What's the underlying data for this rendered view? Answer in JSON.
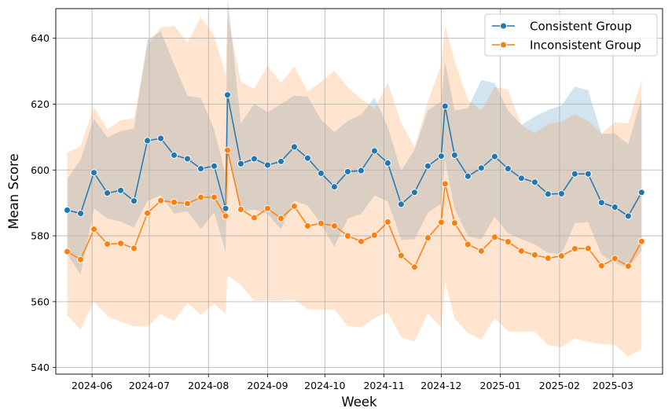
{
  "chart_data": {
    "type": "line",
    "title": "",
    "xlabel": "Week",
    "ylabel": "Mean Score",
    "grid": true,
    "legend_position": "top-right",
    "x_tick_labels": [
      "2024-06",
      "2024-07",
      "2024-08",
      "2024-09",
      "2024-10",
      "2024-11",
      "2024-12",
      "2025-01",
      "2025-02",
      "2025-03"
    ],
    "x_tick_dates": [
      "2024-06-01",
      "2024-07-01",
      "2024-08-01",
      "2024-09-01",
      "2024-10-01",
      "2024-11-01",
      "2024-12-01",
      "2025-01-01",
      "2025-02-01",
      "2025-03-01"
    ],
    "y_ticks": [
      540,
      560,
      580,
      600,
      620,
      640
    ],
    "ylim": [
      538,
      649
    ],
    "xlim": [
      "2024-05-13",
      "2025-03-27"
    ],
    "x": [
      "2024-05-19",
      "2024-05-26",
      "2024-06-02",
      "2024-06-09",
      "2024-06-16",
      "2024-06-23",
      "2024-06-30",
      "2024-07-07",
      "2024-07-14",
      "2024-07-21",
      "2024-07-28",
      "2024-08-04",
      "2024-08-10",
      "2024-08-11",
      "2024-08-18",
      "2024-08-25",
      "2024-09-01",
      "2024-09-08",
      "2024-09-15",
      "2024-09-22",
      "2024-09-29",
      "2024-10-06",
      "2024-10-13",
      "2024-10-20",
      "2024-10-27",
      "2024-11-03",
      "2024-11-10",
      "2024-11-17",
      "2024-11-24",
      "2024-12-01",
      "2024-12-03",
      "2024-12-08",
      "2024-12-15",
      "2024-12-22",
      "2024-12-29",
      "2025-01-05",
      "2025-01-12",
      "2025-01-19",
      "2025-01-26",
      "2025-02-02",
      "2025-02-09",
      "2025-02-16",
      "2025-02-23",
      "2025-03-02",
      "2025-03-09",
      "2025-03-16"
    ],
    "series": [
      {
        "name": "Consistent Group",
        "color": "#1f77b4",
        "values": [
          587.8,
          586.8,
          599.2,
          593.0,
          593.8,
          590.6,
          608.9,
          609.6,
          604.5,
          603.4,
          600.4,
          601.2,
          588.3,
          622.8,
          601.9,
          603.4,
          601.5,
          602.6,
          607.0,
          603.6,
          599.0,
          594.9,
          599.5,
          599.8,
          605.8,
          602.1,
          589.6,
          593.2,
          601.2,
          604.2,
          619.4,
          604.5,
          598.1,
          600.6,
          604.1,
          600.4,
          597.5,
          596.3,
          592.7,
          592.8,
          598.8,
          598.8,
          590.1,
          588.7,
          586.0,
          593.2
        ],
        "ci_lower": [
          574.5,
          568.2,
          588.3,
          585.3,
          584.3,
          582.5,
          590.6,
          592.3,
          586.8,
          587.4,
          582.1,
          587.0,
          575.0,
          605.0,
          587.1,
          588.0,
          586.6,
          582.0,
          590.6,
          589.2,
          583.5,
          576.7,
          585.2,
          586.6,
          592.3,
          590.4,
          578.8,
          579.0,
          587.0,
          589.8,
          603.0,
          588.2,
          579.9,
          578.9,
          585.8,
          580.8,
          579.0,
          577.4,
          574.8,
          574.4,
          583.8,
          584.2,
          574.3,
          571.8,
          570.2,
          575.5
        ],
        "ci_upper": [
          597.2,
          603.1,
          615.6,
          609.9,
          611.8,
          612.6,
          639.5,
          642.1,
          632.1,
          622.5,
          621.9,
          612.3,
          598.6,
          652.8,
          614.1,
          620.1,
          617.5,
          620.0,
          622.6,
          622.3,
          615.3,
          611.5,
          614.9,
          616.8,
          622.0,
          613.0,
          599.7,
          606.2,
          618.1,
          620.8,
          632.9,
          618.1,
          618.8,
          627.3,
          626.4,
          618.1,
          613.7,
          616.2,
          618.2,
          619.6,
          625.3,
          624.2,
          610.9,
          611.1,
          607.8,
          622.1
        ]
      },
      {
        "name": "Inconsistent Group",
        "color": "#ff7f0e",
        "values": [
          575.2,
          572.8,
          582.0,
          577.5,
          577.7,
          576.2,
          586.9,
          590.7,
          590.2,
          589.8,
          591.7,
          591.7,
          586.0,
          606.0,
          588.0,
          585.5,
          588.3,
          585.3,
          589.0,
          583.0,
          583.8,
          583.0,
          580.0,
          578.3,
          580.2,
          584.2,
          574.0,
          570.5,
          579.4,
          584.1,
          595.8,
          583.9,
          577.4,
          575.4,
          579.6,
          578.2,
          575.4,
          574.2,
          573.2,
          573.9,
          576.1,
          576.2,
          570.9,
          573.1,
          570.8,
          578.3
        ],
        "ci_lower": [
          555.8,
          551.5,
          560.0,
          555.6,
          553.8,
          552.5,
          552.4,
          556.2,
          554.1,
          559.6,
          556.0,
          559.4,
          556.2,
          568.0,
          565.0,
          560.3,
          560.4,
          560.3,
          560.6,
          557.7,
          557.6,
          557.6,
          552.6,
          552.1,
          555.0,
          556.7,
          549.2,
          547.9,
          556.5,
          552.0,
          566.1,
          554.9,
          550.4,
          548.5,
          554.9,
          551.0,
          550.8,
          550.9,
          546.8,
          546.2,
          548.8,
          547.8,
          547.1,
          546.9,
          543.3,
          545.6
        ],
        "ci_upper": [
          605.2,
          607.3,
          619.1,
          612.4,
          615.1,
          615.7,
          637.8,
          643.3,
          643.8,
          638.7,
          646.5,
          640.7,
          629.0,
          646.8,
          626.9,
          624.6,
          631.7,
          626.5,
          631.4,
          623.8,
          626.8,
          630.1,
          625.1,
          621.7,
          618.6,
          626.6,
          614.3,
          606.9,
          620.7,
          632.1,
          643.8,
          633.2,
          621.3,
          618.1,
          625.2,
          624.4,
          613.7,
          611.2,
          614.0,
          614.7,
          616.9,
          614.9,
          611.1,
          614.5,
          614.2,
          627.3
        ]
      }
    ]
  }
}
